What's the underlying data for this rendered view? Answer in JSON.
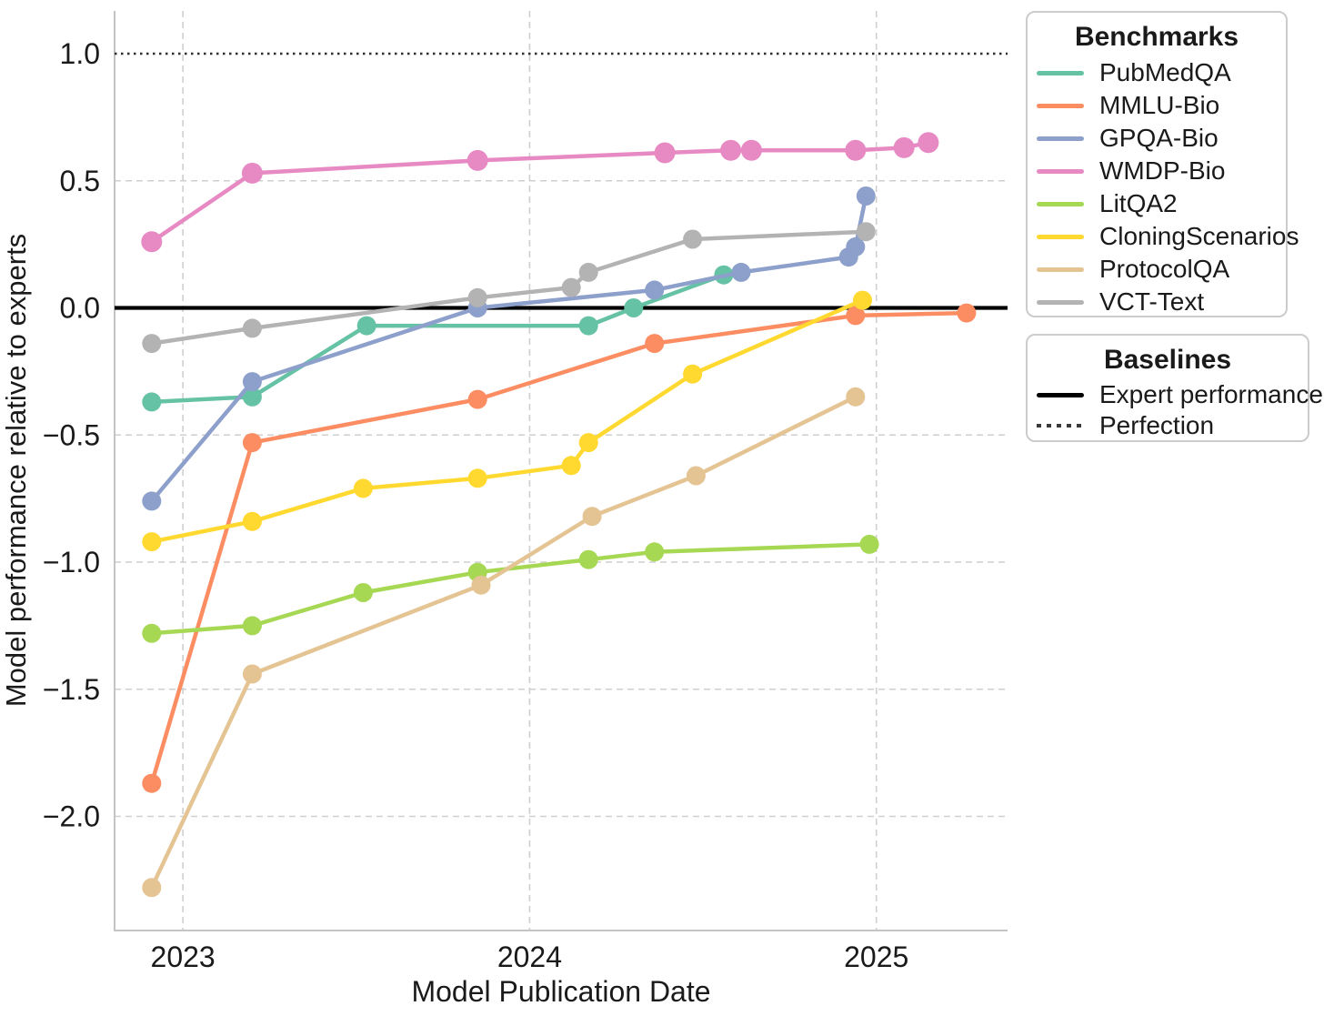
{
  "legend": {
    "benchmarks_title": "Benchmarks",
    "baselines_title": "Baselines",
    "baselines": [
      {
        "label": "Expert performance",
        "style": "solid",
        "color": "#000000"
      },
      {
        "label": "Perfection",
        "style": "dotted",
        "color": "#3a3a3a"
      }
    ]
  },
  "chart_data": {
    "type": "line",
    "title": "",
    "xlabel": "Model Publication Date",
    "ylabel": "Model performance relative to experts",
    "xlim": [
      2022.8,
      2025.38
    ],
    "ylim": [
      -2.45,
      1.17
    ],
    "xticks": [
      2023,
      2024,
      2025
    ],
    "xtick_labels": [
      "2023",
      "2024",
      "2025"
    ],
    "yticks": [
      1.0,
      0.5,
      0.0,
      -0.5,
      -1.0,
      -1.5,
      -2.0
    ],
    "ytick_labels": [
      "1.0",
      "0.5",
      "0.0",
      "−0.5",
      "−1.0",
      "−1.5",
      "−2.0"
    ],
    "grid": true,
    "grid_color": "#cfcfcf",
    "legend_position": "right",
    "baselines": {
      "expert_performance": 0.0,
      "perfection": 1.0
    },
    "series": [
      {
        "name": "PubMedQA",
        "color": "#66c2a5",
        "points": [
          [
            2022.91,
            -0.37
          ],
          [
            2023.2,
            -0.35
          ],
          [
            2023.53,
            -0.07
          ],
          [
            2024.17,
            -0.07
          ],
          [
            2024.3,
            0.0
          ],
          [
            2024.56,
            0.13
          ]
        ]
      },
      {
        "name": "MMLU-Bio",
        "color": "#fc8d62",
        "points": [
          [
            2022.91,
            -1.87
          ],
          [
            2023.2,
            -0.53
          ],
          [
            2023.85,
            -0.36
          ],
          [
            2024.36,
            -0.14
          ],
          [
            2024.94,
            -0.03
          ],
          [
            2025.26,
            -0.02
          ]
        ]
      },
      {
        "name": "GPQA-Bio",
        "color": "#8da0cb",
        "points": [
          [
            2022.91,
            -0.76
          ],
          [
            2023.2,
            -0.29
          ],
          [
            2023.85,
            0.0
          ],
          [
            2024.36,
            0.07
          ],
          [
            2024.61,
            0.14
          ],
          [
            2024.92,
            0.2
          ],
          [
            2024.94,
            0.24
          ],
          [
            2024.97,
            0.44
          ]
        ]
      },
      {
        "name": "WMDP-Bio",
        "color": "#e78ac3",
        "points": [
          [
            2022.91,
            0.26
          ],
          [
            2023.2,
            0.53
          ],
          [
            2023.85,
            0.58
          ],
          [
            2024.39,
            0.61
          ],
          [
            2024.58,
            0.62
          ],
          [
            2024.64,
            0.62
          ],
          [
            2024.94,
            0.62
          ],
          [
            2025.08,
            0.63
          ],
          [
            2025.15,
            0.65
          ]
        ]
      },
      {
        "name": "LitQA2",
        "color": "#a6d854",
        "points": [
          [
            2022.91,
            -1.28
          ],
          [
            2023.2,
            -1.25
          ],
          [
            2023.52,
            -1.12
          ],
          [
            2023.85,
            -1.04
          ],
          [
            2024.17,
            -0.99
          ],
          [
            2024.36,
            -0.96
          ],
          [
            2024.98,
            -0.93
          ]
        ]
      },
      {
        "name": "CloningScenarios",
        "color": "#ffd92f",
        "points": [
          [
            2022.91,
            -0.92
          ],
          [
            2023.2,
            -0.84
          ],
          [
            2023.52,
            -0.71
          ],
          [
            2023.85,
            -0.67
          ],
          [
            2024.12,
            -0.62
          ],
          [
            2024.17,
            -0.53
          ],
          [
            2024.47,
            -0.26
          ],
          [
            2024.96,
            0.03
          ]
        ]
      },
      {
        "name": "ProtocolQA",
        "color": "#e5c494",
        "points": [
          [
            2022.91,
            -2.28
          ],
          [
            2023.2,
            -1.44
          ],
          [
            2023.86,
            -1.09
          ],
          [
            2024.18,
            -0.82
          ],
          [
            2024.48,
            -0.66
          ],
          [
            2024.94,
            -0.35
          ]
        ]
      },
      {
        "name": "VCT-Text",
        "color": "#b3b3b3",
        "points": [
          [
            2022.91,
            -0.14
          ],
          [
            2023.2,
            -0.08
          ],
          [
            2023.85,
            0.04
          ],
          [
            2024.12,
            0.08
          ],
          [
            2024.17,
            0.14
          ],
          [
            2024.47,
            0.27
          ],
          [
            2024.97,
            0.3
          ]
        ]
      }
    ]
  }
}
